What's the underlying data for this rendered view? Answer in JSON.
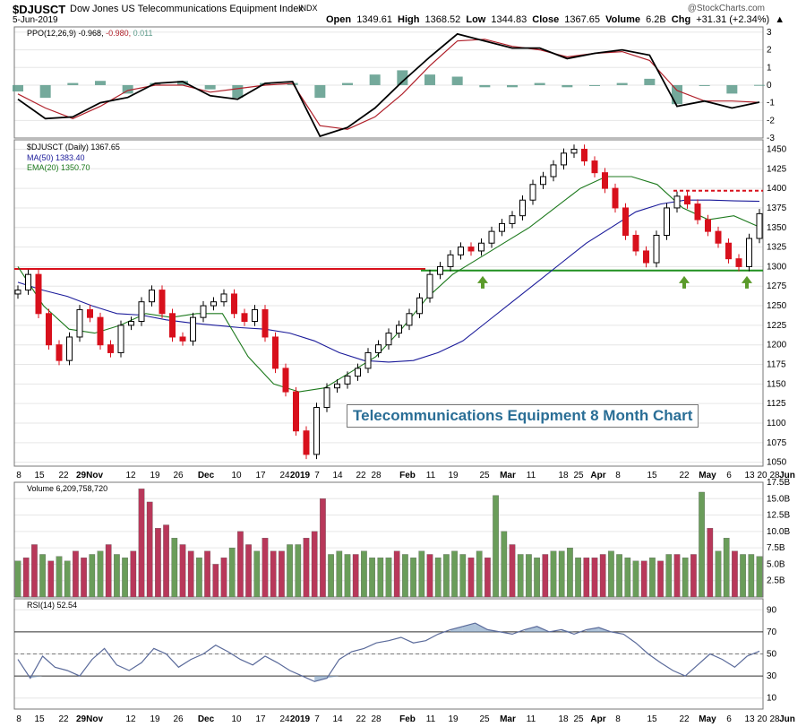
{
  "header": {
    "symbol": "$DJUSCT",
    "name": "Dow Jones US Telecommunications Equipment Index",
    "exchange": "INDX",
    "date": "5-Jun-2019",
    "watermark": "@StockCharts.com",
    "open_label": "Open",
    "open": "1349.61",
    "high_label": "High",
    "high": "1368.52",
    "low_label": "Low",
    "low": "1344.83",
    "close_label": "Close",
    "close": "1367.65",
    "volume_label": "Volume",
    "volume": "6.2B",
    "chg_label": "Chg",
    "chg": "+31.31 (+2.34%)",
    "chg_arrow": "▲"
  },
  "panels": {
    "ppo": {
      "label": "PPO(12,26,9)",
      "v1": "-0.968,",
      "v2": "-0.980,",
      "v3": "0.011"
    },
    "price": {
      "label": "$DJUSCT (Daily) 1367.65",
      "ma_label": "MA(50) 1383.40",
      "ema_label": "EMA(20) 1350.70"
    },
    "volume": {
      "label": "Volume 6,209,758,720"
    },
    "rsi": {
      "label": "RSI(14) 52.54"
    }
  },
  "callout": "Telecommunications Equipment 8 Month Chart",
  "x_labels": [
    "8",
    "15",
    "22",
    "29Nov",
    "12",
    "19",
    "26",
    "Dec",
    "10",
    "17",
    "24",
    "2019",
    "7",
    "14",
    "22",
    "28",
    "Feb",
    "11",
    "19",
    "25",
    "Mar",
    "11",
    "18",
    "25",
    "Apr",
    "8",
    "15",
    "22",
    "May",
    "6",
    "13",
    "20",
    "28",
    "Jun"
  ],
  "colors": {
    "up": "#ffffff",
    "down": "#d8101c",
    "ma50": "#1b1b9a",
    "ema20": "#1e7a1e",
    "resistance": "#d8101c",
    "support": "#1f8f1f",
    "vol_up": "#6a9d5a",
    "vol_down": "#b8385a",
    "rsi_line": "#5a6a9a",
    "ppo_line": "#000000",
    "signal_line": "#b0202a",
    "hist": "#5c9a8a",
    "arrow": "#5a9a2a"
  },
  "chart_data": [
    {
      "type": "line",
      "title": "PPO(12,26,9)",
      "ylim": [
        -3,
        3.3
      ],
      "yticks": [
        -3,
        -2,
        -1,
        0,
        1,
        2,
        3
      ],
      "series": [
        {
          "name": "PPO",
          "values": [
            -0.8,
            -1.9,
            -1.8,
            -1.0,
            -0.7,
            0.1,
            0.2,
            -0.6,
            -0.8,
            0.1,
            0.2,
            -2.9,
            -2.4,
            -1.3,
            0.2,
            1.6,
            2.9,
            2.5,
            2.1,
            2.1,
            1.5,
            1.8,
            2.0,
            1.7,
            -1.2,
            -0.9,
            -1.3,
            -0.97
          ]
        },
        {
          "name": "Signal",
          "values": [
            -0.5,
            -1.3,
            -1.9,
            -1.2,
            -0.3,
            0.0,
            0.0,
            -0.4,
            -0.2,
            0.0,
            0.1,
            -2.3,
            -2.5,
            -1.8,
            -0.5,
            1.1,
            2.5,
            2.6,
            2.2,
            2.0,
            1.6,
            1.8,
            1.9,
            1.4,
            -0.3,
            -0.9,
            -0.9,
            -0.98
          ]
        }
      ]
    },
    {
      "type": "candlestick",
      "title": "$DJUSCT (Daily) 1367.65",
      "ylim": [
        1045,
        1462
      ],
      "yticks": [
        1050,
        1075,
        1100,
        1125,
        1150,
        1175,
        1200,
        1225,
        1250,
        1275,
        1300,
        1325,
        1350,
        1375,
        1400,
        1425,
        1450
      ],
      "close": [
        1270,
        1290,
        1240,
        1200,
        1180,
        1210,
        1245,
        1235,
        1200,
        1190,
        1225,
        1230,
        1255,
        1270,
        1240,
        1210,
        1205,
        1235,
        1250,
        1255,
        1265,
        1240,
        1230,
        1245,
        1210,
        1170,
        1140,
        1090,
        1060,
        1120,
        1145,
        1150,
        1160,
        1170,
        1190,
        1200,
        1215,
        1225,
        1240,
        1260,
        1290,
        1300,
        1315,
        1325,
        1320,
        1330,
        1345,
        1355,
        1365,
        1385,
        1405,
        1415,
        1430,
        1445,
        1450,
        1435,
        1420,
        1400,
        1375,
        1340,
        1320,
        1305,
        1340,
        1375,
        1390,
        1380,
        1360,
        1345,
        1330,
        1310,
        1300,
        1336,
        1367.65
      ],
      "series": [
        {
          "name": "MA(50)",
          "values": [
            1280,
            1270,
            1262,
            1250,
            1240,
            1238,
            1232,
            1228,
            1225,
            1222,
            1220,
            1215,
            1205,
            1190,
            1180,
            1178,
            1180,
            1190,
            1205,
            1230,
            1255,
            1280,
            1305,
            1330,
            1350,
            1370,
            1380,
            1385,
            1385,
            1384,
            1383.4
          ]
        },
        {
          "name": "EMA(20)",
          "values": [
            1300,
            1250,
            1220,
            1215,
            1225,
            1240,
            1235,
            1240,
            1240,
            1185,
            1150,
            1140,
            1145,
            1165,
            1185,
            1220,
            1260,
            1290,
            1310,
            1330,
            1350,
            1375,
            1400,
            1415,
            1415,
            1405,
            1375,
            1360,
            1365,
            1350.7
          ]
        }
      ],
      "annotations": [
        {
          "type": "hline",
          "label": "resistance",
          "y": 1397
        },
        {
          "type": "hline",
          "label": "support-old",
          "y": 1297
        },
        {
          "type": "hline",
          "label": "support",
          "y": 1295
        }
      ]
    },
    {
      "type": "bar",
      "title": "Volume 6,209,758,720",
      "ylim": [
        0,
        17.5
      ],
      "yticks_labels": [
        "2.5B",
        "5.0B",
        "7.5B",
        "10.0B",
        "12.5B",
        "15.0B",
        "17.5B"
      ],
      "values": [
        5.5,
        6.0,
        8.0,
        6.5,
        5.5,
        6.2,
        5.5,
        7.0,
        6.0,
        6.5,
        7.0,
        8.0,
        6.5,
        6.0,
        7.0,
        16.5,
        14.5,
        10.5,
        11.0,
        9.0,
        8.0,
        7.0,
        6.0,
        7.0,
        5.0,
        6.0,
        7.5,
        10.0,
        8.0,
        7.0,
        9.0,
        7.0,
        7.0,
        8.0,
        8.0,
        9.0,
        10.0,
        15.0,
        6.5,
        7.0,
        6.5,
        6.5,
        7.0,
        6.0,
        6.0,
        6.0,
        7.0,
        6.5,
        6.0,
        7.0,
        6.5,
        6.0,
        6.5,
        7.0,
        6.5,
        6.0,
        7.0,
        6.0,
        15.5,
        10.0,
        8.0,
        6.5,
        6.5,
        6.0,
        6.5,
        7.0,
        7.0,
        7.5,
        6.0,
        6.0,
        6.0,
        6.5,
        7.0,
        6.5,
        6.0,
        5.5,
        5.5,
        6.0,
        5.5,
        6.5,
        6.5,
        6.0,
        6.5,
        16.0,
        10.5,
        7.0,
        9.0,
        7.0,
        6.5,
        6.5,
        6.2
      ],
      "up": [
        1,
        0,
        0,
        1,
        0,
        1,
        1,
        0,
        0,
        1,
        1,
        0,
        1,
        1,
        0,
        0,
        0,
        0,
        0,
        1,
        0,
        0,
        1,
        0,
        0,
        0,
        1,
        0,
        0,
        1,
        0,
        0,
        0,
        1,
        1,
        0,
        0,
        0,
        1,
        1,
        1,
        0,
        1,
        1,
        1,
        1,
        0,
        1,
        1,
        1,
        0,
        1,
        1,
        1,
        1,
        0,
        1,
        0,
        1,
        1,
        0,
        1,
        1,
        1,
        0,
        1,
        1,
        1,
        1,
        0,
        0,
        0,
        1,
        1,
        1,
        1,
        0,
        1,
        0,
        1,
        0,
        1,
        0,
        1,
        0,
        1,
        1,
        0,
        1,
        1,
        1
      ]
    },
    {
      "type": "line",
      "title": "RSI(14) 52.54",
      "ylim": [
        0,
        100
      ],
      "yticks": [
        10,
        30,
        50,
        70,
        90
      ],
      "series": [
        {
          "name": "RSI(14)",
          "values": [
            45,
            28,
            48,
            38,
            35,
            30,
            45,
            55,
            40,
            35,
            42,
            55,
            50,
            38,
            45,
            50,
            58,
            52,
            45,
            40,
            48,
            42,
            35,
            30,
            25,
            28,
            45,
            52,
            55,
            60,
            62,
            65,
            60,
            62,
            68,
            72,
            75,
            78,
            72,
            70,
            68,
            72,
            75,
            70,
            72,
            68,
            72,
            74,
            70,
            68,
            60,
            50,
            42,
            35,
            30,
            40,
            50,
            45,
            38,
            48,
            52.54
          ]
        }
      ],
      "annotations": [
        {
          "type": "hline",
          "y": 70
        },
        {
          "type": "hline",
          "y": 50
        },
        {
          "type": "hline",
          "y": 30
        }
      ]
    }
  ]
}
